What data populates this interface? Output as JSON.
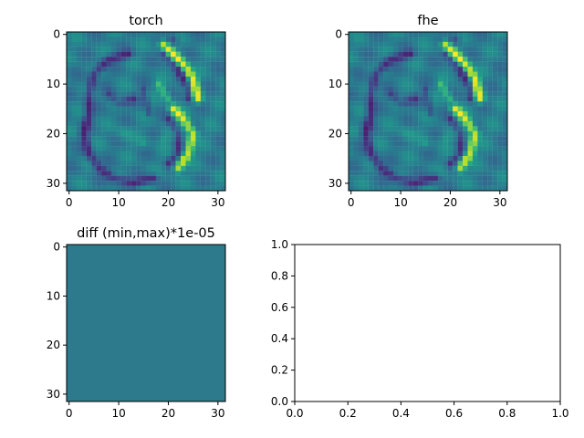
{
  "chart_data": [
    {
      "type": "heatmap",
      "title": "torch",
      "grid_size": 32,
      "colormap": "viridis",
      "xticks": [
        "0",
        "10",
        "20",
        "30"
      ],
      "yticks": [
        "0",
        "10",
        "20",
        "30"
      ],
      "grid": false
    },
    {
      "type": "heatmap",
      "title": "fhe",
      "grid_size": 32,
      "colormap": "viridis",
      "xticks": [
        "0",
        "10",
        "20",
        "30"
      ],
      "yticks": [
        "0",
        "10",
        "20",
        "30"
      ],
      "grid": false
    },
    {
      "type": "heatmap",
      "title": "diff (min,max)*1e-05",
      "grid_size": 32,
      "fill_color": "#2c7a8c",
      "xticks": [
        "0",
        "10",
        "20",
        "30"
      ],
      "yticks": [
        "0",
        "10",
        "20",
        "30"
      ],
      "grid": false
    },
    {
      "type": "line",
      "title": "",
      "xlim": [
        0,
        1
      ],
      "ylim": [
        0,
        1
      ],
      "xticks": [
        "0.0",
        "0.2",
        "0.4",
        "0.6",
        "0.8",
        "1.0"
      ],
      "yticks": [
        "0.0",
        "0.2",
        "0.4",
        "0.6",
        "0.8",
        "1.0"
      ],
      "series": [],
      "grid": false
    }
  ]
}
